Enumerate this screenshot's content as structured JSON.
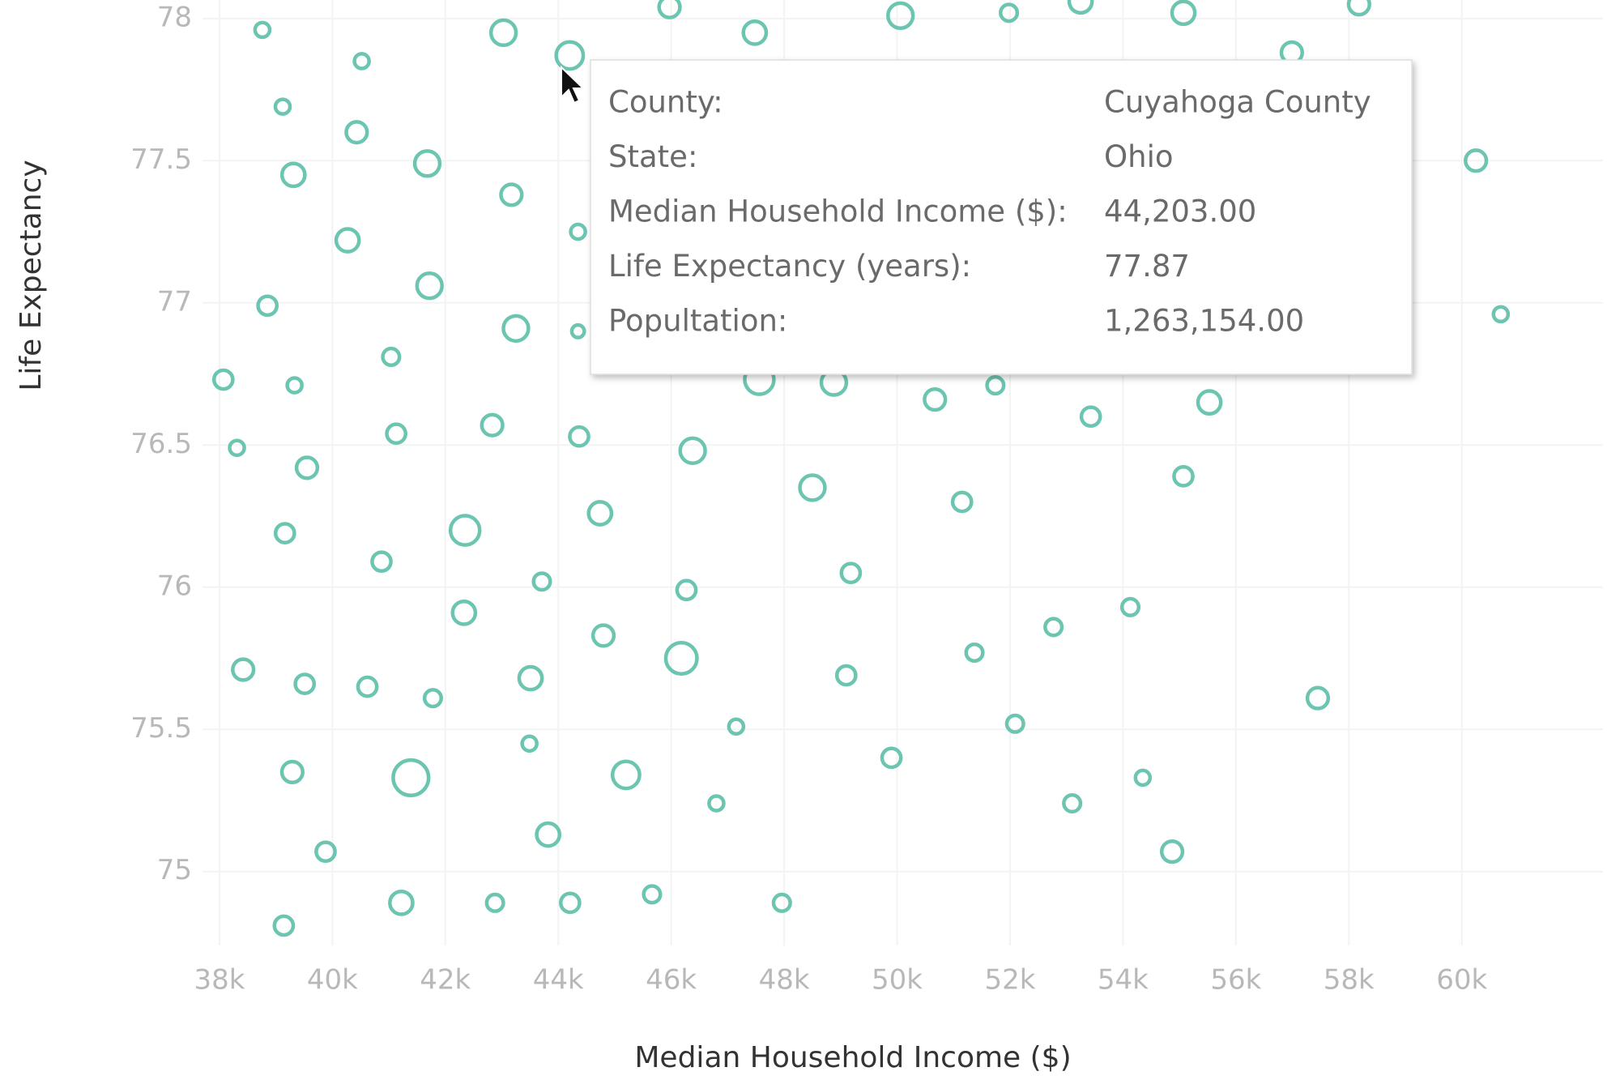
{
  "chart_data": {
    "type": "scatter",
    "x_label": "Median Household Income ($)",
    "y_label": "Life Expectancy",
    "color": "#6cc5b0",
    "grid": true,
    "xlim": [
      37700,
      62500
    ],
    "ylim": [
      74.74,
      78.065
    ],
    "xticks": [
      {
        "value": 38000,
        "label": "38k"
      },
      {
        "value": 40000,
        "label": "40k"
      },
      {
        "value": 42000,
        "label": "42k"
      },
      {
        "value": 44000,
        "label": "44k"
      },
      {
        "value": 46000,
        "label": "46k"
      },
      {
        "value": 48000,
        "label": "48k"
      },
      {
        "value": 50000,
        "label": "50k"
      },
      {
        "value": 52000,
        "label": "52k"
      },
      {
        "value": 54000,
        "label": "54k"
      },
      {
        "value": 56000,
        "label": "56k"
      },
      {
        "value": 58000,
        "label": "58k"
      },
      {
        "value": 60000,
        "label": "60k"
      }
    ],
    "yticks": [
      75,
      75.5,
      76,
      76.5,
      77,
      77.5,
      78
    ],
    "x": [
      38760,
      40520,
      43030,
      44203,
      45970,
      47480,
      50060,
      51980,
      53250,
      55070,
      58180,
      56990,
      39120,
      40430,
      39310,
      41680,
      43170,
      60250,
      40270,
      38850,
      41720,
      43250,
      41040,
      38070,
      39330,
      47560,
      48880,
      50670,
      51740,
      53430,
      55530,
      38310,
      39550,
      41130,
      42830,
      44370,
      46380,
      48500,
      51150,
      55070,
      39160,
      42350,
      44740,
      40870,
      43710,
      46270,
      49180,
      42330,
      44800,
      46180,
      52770,
      54130,
      38420,
      39510,
      40620,
      41780,
      43510,
      49100,
      51370,
      47150,
      52090,
      57450,
      43490,
      39290,
      41390,
      45200,
      49900,
      46800,
      53100,
      54350,
      43820,
      39880,
      54870,
      41220,
      42880,
      44210,
      45660,
      47960,
      39140,
      60690,
      44350,
      44350
    ],
    "values": [
      77.96,
      77.85,
      77.95,
      77.87,
      78.04,
      77.95,
      78.01,
      78.02,
      78.06,
      78.02,
      78.05,
      77.88,
      77.69,
      77.6,
      77.45,
      77.49,
      77.38,
      77.5,
      77.22,
      76.99,
      77.06,
      76.91,
      76.81,
      76.73,
      76.71,
      76.73,
      76.72,
      76.66,
      76.71,
      76.6,
      76.65,
      76.49,
      76.42,
      76.54,
      76.57,
      76.53,
      76.48,
      76.35,
      76.3,
      76.39,
      76.19,
      76.2,
      76.26,
      76.09,
      76.02,
      75.99,
      76.05,
      75.91,
      75.83,
      75.75,
      75.86,
      75.93,
      75.71,
      75.66,
      75.65,
      75.61,
      75.68,
      75.69,
      75.77,
      75.51,
      75.52,
      75.61,
      75.45,
      75.35,
      75.33,
      75.34,
      75.4,
      75.24,
      75.24,
      75.33,
      75.13,
      75.07,
      75.07,
      74.89,
      74.89,
      74.89,
      74.92,
      74.89,
      74.81,
      76.96,
      77.25,
      76.9
    ],
    "sizes": [
      370000,
      370000,
      1080000,
      1263154,
      750000,
      900000,
      1080000,
      480000,
      900000,
      900000,
      750000,
      750000,
      370000,
      750000,
      900000,
      1080000,
      750000,
      750000,
      900000,
      610000,
      1080000,
      1080000,
      480000,
      610000,
      370000,
      1470000,
      1080000,
      750000,
      480000,
      610000,
      900000,
      370000,
      750000,
      610000,
      750000,
      610000,
      1080000,
      1080000,
      610000,
      610000,
      610000,
      1470000,
      900000,
      610000,
      480000,
      610000,
      610000,
      900000,
      750000,
      1680000,
      480000,
      480000,
      750000,
      610000,
      610000,
      480000,
      900000,
      610000,
      480000,
      370000,
      480000,
      750000,
      370000,
      750000,
      2160000,
      1260000,
      610000,
      370000,
      480000,
      370000,
      900000,
      610000,
      750000,
      900000,
      480000,
      610000,
      480000,
      480000,
      610000,
      370000,
      370000,
      270000
    ],
    "tooltip": {
      "rows": [
        {
          "label": "County:",
          "value": "Cuyahoga County"
        },
        {
          "label": "State:",
          "value": "Ohio"
        },
        {
          "label": "Median Household Income ($):",
          "value": "44,203.00"
        },
        {
          "label": "Life Expectancy (years):",
          "value": "77.87"
        },
        {
          "label": "Popultation:",
          "value": "1,263,154.00"
        }
      ]
    }
  }
}
